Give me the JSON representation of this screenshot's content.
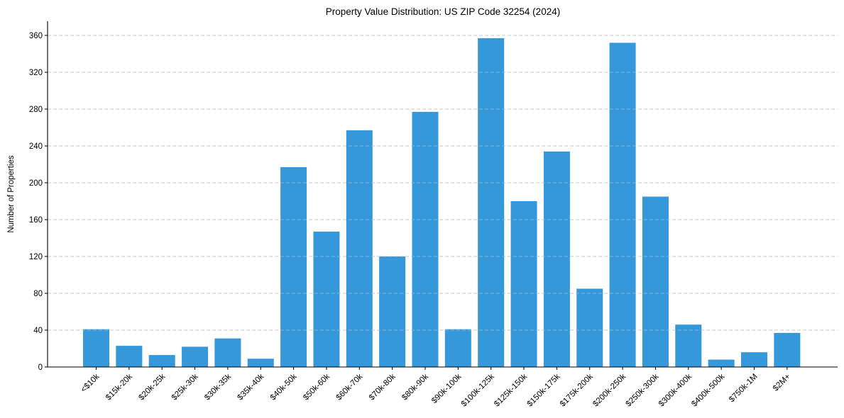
{
  "chart_data": {
    "type": "bar",
    "title": "Property Value Distribution: US ZIP Code 32254 (2024)",
    "xlabel": "",
    "ylabel": "Number of Properties",
    "categories": [
      "<$10k",
      "$15k-20k",
      "$20k-25k",
      "$25k-30k",
      "$30k-35k",
      "$35k-40k",
      "$40k-50k",
      "$50k-60k",
      "$60k-70k",
      "$70k-80k",
      "$80k-90k",
      "$90k-100k",
      "$100k-125k",
      "$125k-150k",
      "$150k-175k",
      "$175k-200k",
      "$200k-250k",
      "$250k-300k",
      "$300k-400k",
      "$400k-500k",
      "$750k-1M",
      "$2M+"
    ],
    "values": [
      41,
      23,
      13,
      22,
      31,
      9,
      217,
      147,
      257,
      120,
      277,
      41,
      357,
      180,
      234,
      85,
      352,
      185,
      46,
      8,
      16,
      37
    ],
    "ylim": [
      0,
      375
    ],
    "yticks": [
      0,
      40,
      80,
      120,
      160,
      200,
      240,
      280,
      320,
      360
    ],
    "grid": "y-dashed",
    "legend": null,
    "bar_color": "#3498db",
    "xtick_rotation": 45
  }
}
